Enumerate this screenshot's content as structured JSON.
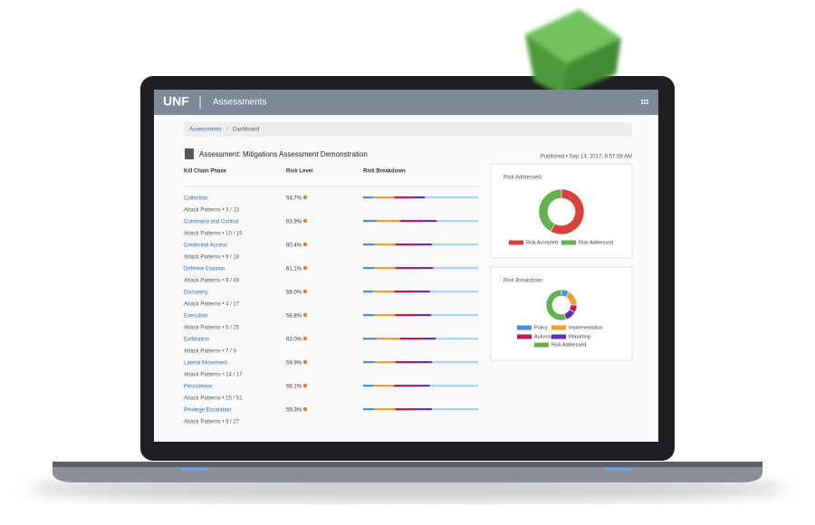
{
  "header": {
    "logo": "UNF",
    "title": "Assessments"
  },
  "breadcrumb": [
    "Assessments",
    "Dashboard"
  ],
  "assessment": {
    "title": "Assessment: Mitigations Assessment Demonstration",
    "published": "Published • Sep 14, 2017, 9:57:58 AM"
  },
  "table": {
    "columns": [
      "Kill Chain Phase",
      "Risk Level",
      "Risk Breakdown"
    ],
    "segment_colors": [
      "#4a90e2",
      "#f0a030",
      "#c2185b",
      "#6a2fb0",
      "#a9d4f5"
    ],
    "rows": [
      {
        "phase": "Collection",
        "patterns": "Attack Patterns • 3 / 13",
        "risk": "54.7%",
        "breakdown": [
          9,
          18,
          15,
          12,
          46
        ]
      },
      {
        "phase": "Command and Control",
        "patterns": "Attack Patterns • 10 / 19",
        "risk": "63.9%",
        "breakdown": [
          12,
          20,
          20,
          12,
          36
        ]
      },
      {
        "phase": "Credential Access",
        "patterns": "Attack Patterns • 9 / 18",
        "risk": "60.4%",
        "breakdown": [
          10,
          18,
          18,
          14,
          40
        ]
      },
      {
        "phase": "Defense Evasion",
        "patterns": "Attack Patterns • 9 / 49",
        "risk": "61.1%",
        "breakdown": [
          10,
          18,
          20,
          13,
          39
        ]
      },
      {
        "phase": "Discovery",
        "patterns": "Attack Patterns • 4 / 17",
        "risk": "58.0%",
        "breakdown": [
          9,
          18,
          18,
          13,
          42
        ]
      },
      {
        "phase": "Execution",
        "patterns": "Attack Patterns • 5 / 25",
        "risk": "58.8%",
        "breakdown": [
          10,
          18,
          18,
          13,
          41
        ]
      },
      {
        "phase": "Exfiltration",
        "patterns": "Attack Patterns • 7 / 9",
        "risk": "63.0%",
        "breakdown": [
          12,
          20,
          19,
          12,
          37
        ]
      },
      {
        "phase": "Lateral Movement",
        "patterns": "Attack Patterns • 14 / 17",
        "risk": "59.9%",
        "breakdown": [
          10,
          18,
          19,
          13,
          40
        ]
      },
      {
        "phase": "Persistence",
        "patterns": "Attack Patterns • 15 / 51",
        "risk": "58.1%",
        "breakdown": [
          9,
          18,
          18,
          13,
          42
        ]
      },
      {
        "phase": "Privilege Escalation",
        "patterns": "Attack Patterns • 9 / 27",
        "risk": "59.3%",
        "breakdown": [
          10,
          18,
          18,
          14,
          40
        ]
      }
    ]
  },
  "charts": [
    {
      "type": "donut",
      "title": "Risk Addressed",
      "labels": [
        "Risk Accepted",
        "Risk Addressed"
      ],
      "values": [
        58,
        42
      ],
      "colors": [
        "#d9413a",
        "#5fb34a"
      ]
    },
    {
      "type": "donut",
      "title": "Risk Breakdown",
      "labels": [
        "Policy",
        "Implementation",
        "Automation",
        "Reporting",
        "Risk Addressed"
      ],
      "values": [
        8,
        17,
        8,
        12,
        55
      ],
      "colors": [
        "#4a90e2",
        "#f0a030",
        "#c2185b",
        "#6a2fb0",
        "#5fb34a"
      ]
    }
  ]
}
